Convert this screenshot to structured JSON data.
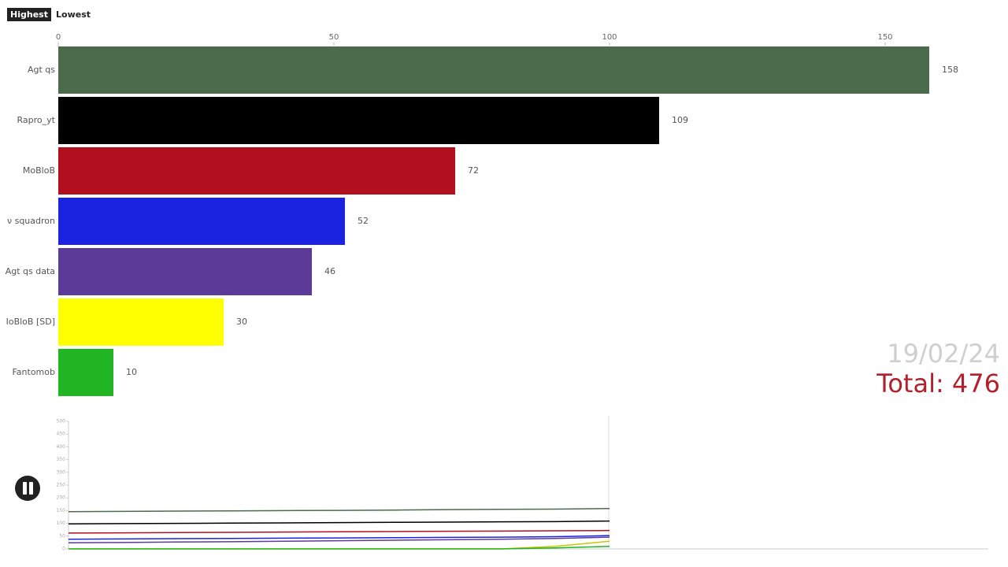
{
  "buttons": [
    "Highest",
    "Lowest"
  ],
  "chart_data": [
    {
      "type": "bar",
      "categories": [
        "Agt qs",
        "Rapro_yt",
        "MoBloB",
        "ν squadron",
        "Agt qs data",
        "IoBloB [SD]",
        "Fantomob"
      ],
      "values": [
        158,
        109,
        72,
        52,
        46,
        30,
        10
      ],
      "colors": [
        "#4b6b4c",
        "#000000",
        "#b3101f",
        "#1b22e0",
        "#5c3b98",
        "#ffff00",
        "#22b523"
      ],
      "xlim": [
        0,
        160
      ],
      "xticks": [
        0,
        50,
        100,
        150
      ],
      "annotations": [
        "19/02/24",
        "Total: 476"
      ]
    },
    {
      "type": "line",
      "categories": [
        null,
        null,
        null,
        null,
        null,
        null,
        null,
        null,
        null,
        null,
        null,
        null,
        null,
        null,
        null,
        null,
        null,
        null
      ],
      "series": [
        {
          "name": "Agt qs",
          "color": "#4b6b4c",
          "values": [
            146,
            147,
            148,
            149,
            150,
            151,
            152,
            154,
            155,
            156,
            158,
            null,
            null,
            null,
            null,
            null,
            null,
            null
          ]
        },
        {
          "name": "Rapro_yt",
          "color": "#000000",
          "values": [
            98,
            99,
            100,
            101,
            102,
            103,
            104,
            105,
            106,
            107,
            109,
            null,
            null,
            null,
            null,
            null,
            null,
            null
          ]
        },
        {
          "name": "MoBloB",
          "color": "#b3101f",
          "values": [
            62,
            63,
            64,
            65,
            66,
            67,
            68,
            69,
            70,
            71,
            72,
            null,
            null,
            null,
            null,
            null,
            null,
            null
          ]
        },
        {
          "name": "ν squadron",
          "color": "#1b22e0",
          "values": [
            38,
            39,
            40,
            41,
            42,
            43,
            44,
            45,
            46,
            48,
            52,
            null,
            null,
            null,
            null,
            null,
            null,
            null
          ]
        },
        {
          "name": "Agt qs data",
          "color": "#5c3b98",
          "values": [
            24,
            25,
            27,
            28,
            30,
            32,
            34,
            36,
            38,
            41,
            46,
            null,
            null,
            null,
            null,
            null,
            null,
            null
          ]
        },
        {
          "name": "IoBloB [SD]",
          "color": "#c8c800",
          "values": [
            0,
            0,
            0,
            0,
            0,
            0,
            0,
            0,
            0,
            10,
            30,
            null,
            null,
            null,
            null,
            null,
            null,
            null
          ]
        },
        {
          "name": "Fantomob",
          "color": "#22b523",
          "values": [
            0,
            0,
            0,
            0,
            0,
            0,
            0,
            0,
            0,
            4,
            10,
            null,
            null,
            null,
            null,
            null,
            null,
            null
          ]
        }
      ],
      "ylim": [
        0,
        500
      ],
      "yticks": [
        0,
        50,
        100,
        150,
        200,
        250,
        300,
        350,
        400,
        450,
        500
      ]
    }
  ]
}
